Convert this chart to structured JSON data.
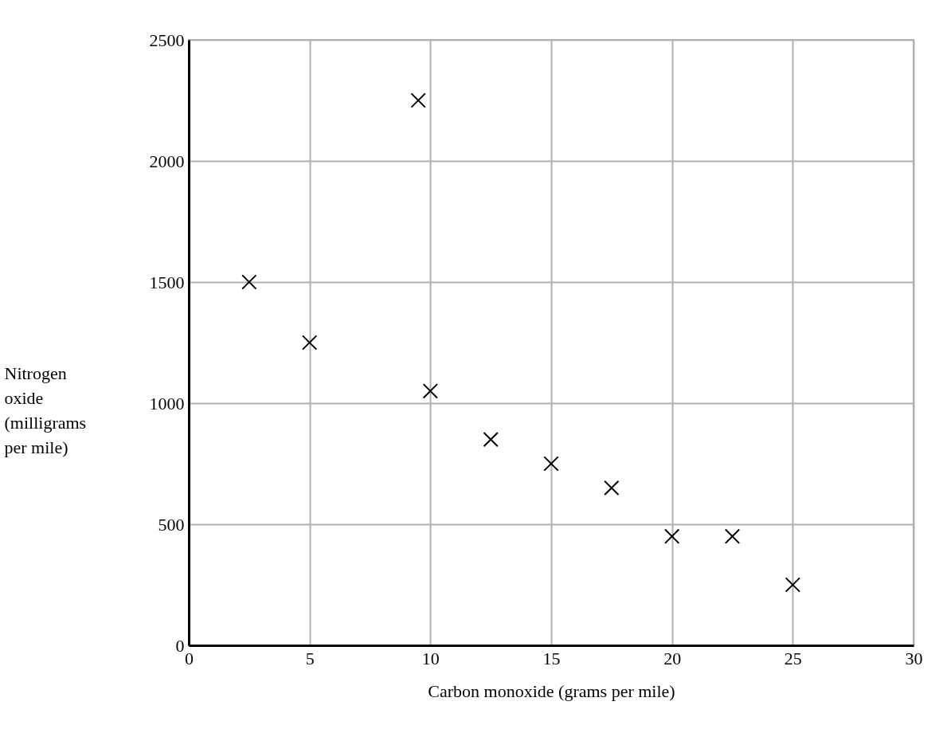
{
  "chart_data": {
    "type": "scatter",
    "xlabel": "Carbon monoxide (grams per mile)",
    "ylabel": "Nitrogen oxide (milligrams per mile)",
    "x": [
      2.5,
      5,
      9.5,
      10,
      12.5,
      15,
      17.5,
      20,
      22.5,
      25
    ],
    "values": [
      1500,
      1250,
      2250,
      1050,
      850,
      750,
      650,
      450,
      450,
      250
    ],
    "color": "#000000",
    "marker": "cross",
    "xlim": [
      0,
      30
    ],
    "xticks": [
      0,
      5,
      10,
      15,
      20,
      25,
      30
    ],
    "ylim": [
      0,
      2500
    ],
    "yticks": [
      0,
      500,
      1000,
      1500,
      2000,
      2500
    ],
    "grid": true
  }
}
